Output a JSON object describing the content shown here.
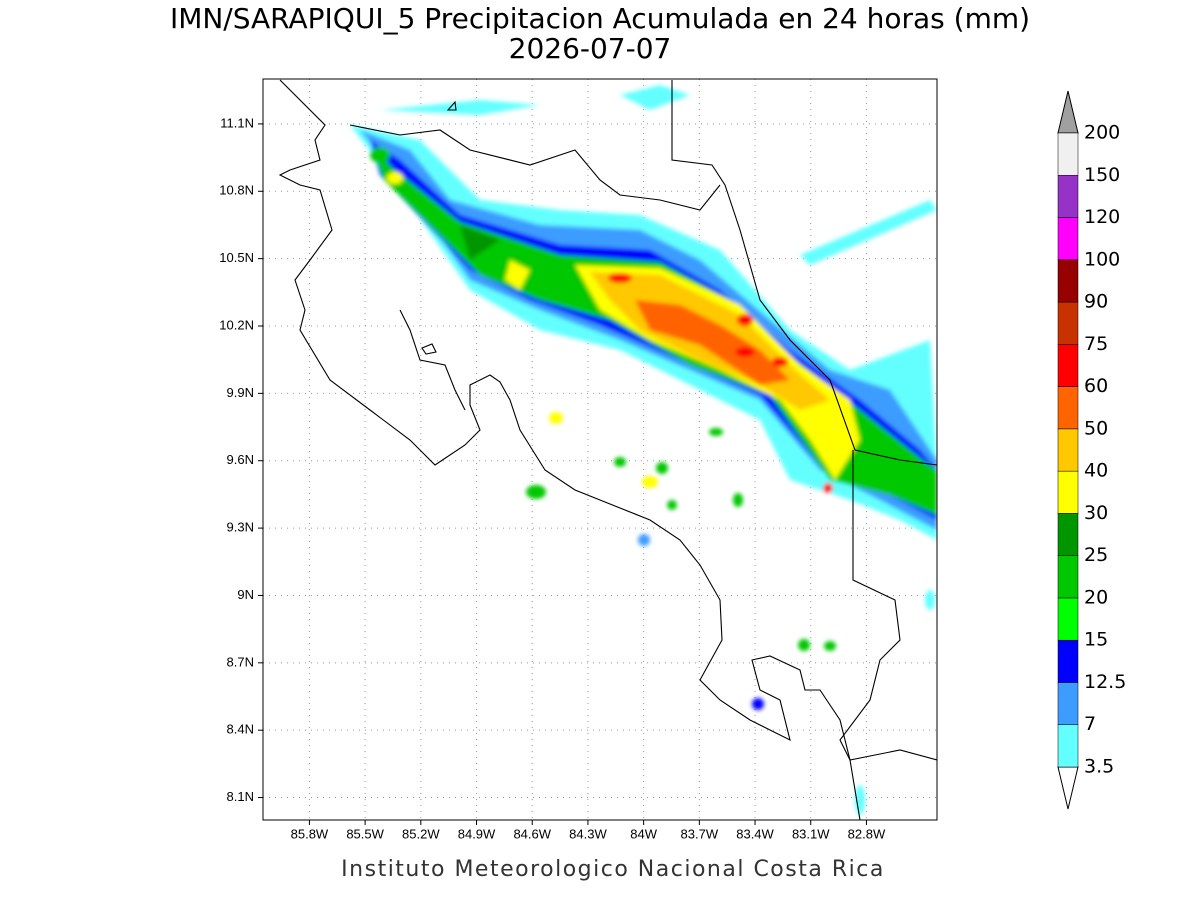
{
  "map": {
    "type": "map",
    "title": "IMN/SARAPIQUI_5 Precipitacion Acumulada en 24 horas (mm)",
    "subtitle": "2026-07-07",
    "footer": "Instituto Meteorologico Nacional Costa Rica",
    "xlim": [
      -86.05,
      -82.42
    ],
    "ylim": [
      8.0,
      11.3
    ],
    "xticks": [
      {
        "value": -85.8,
        "label": "85.8W"
      },
      {
        "value": -85.5,
        "label": "85.5W"
      },
      {
        "value": -85.2,
        "label": "85.2W"
      },
      {
        "value": -84.9,
        "label": "84.9W"
      },
      {
        "value": -84.6,
        "label": "84.6W"
      },
      {
        "value": -84.3,
        "label": "84.3W"
      },
      {
        "value": -84.0,
        "label": "84W"
      },
      {
        "value": -83.7,
        "label": "83.7W"
      },
      {
        "value": -83.4,
        "label": "83.4W"
      },
      {
        "value": -83.1,
        "label": "83.1W"
      },
      {
        "value": -82.8,
        "label": "82.8W"
      }
    ],
    "yticks": [
      {
        "value": 8.1,
        "label": "8.1N"
      },
      {
        "value": 8.4,
        "label": "8.4N"
      },
      {
        "value": 8.7,
        "label": "8.7N"
      },
      {
        "value": 9.0,
        "label": "9N"
      },
      {
        "value": 9.3,
        "label": "9.3N"
      },
      {
        "value": 9.6,
        "label": "9.6N"
      },
      {
        "value": 9.9,
        "label": "9.9N"
      },
      {
        "value": 10.2,
        "label": "10.2N"
      },
      {
        "value": 10.5,
        "label": "10.5N"
      },
      {
        "value": 10.8,
        "label": "10.8N"
      },
      {
        "value": 11.1,
        "label": "11.1N"
      }
    ],
    "grid": true,
    "legend": {
      "levels": [
        3.5,
        7,
        12.5,
        15,
        20,
        25,
        30,
        40,
        50,
        60,
        75,
        90,
        100,
        120,
        150,
        200
      ],
      "colors": [
        "#64ffff",
        "#3c9cff",
        "#0000ff",
        "#00ff00",
        "#00c800",
        "#009600",
        "#ffff00",
        "#ffc800",
        "#ff6400",
        "#ff0000",
        "#c83200",
        "#960000",
        "#ff00ff",
        "#9632c8",
        "#f0f0f0"
      ],
      "under_color": "#ffffff",
      "over_color": "#a0a0a0"
    }
  }
}
